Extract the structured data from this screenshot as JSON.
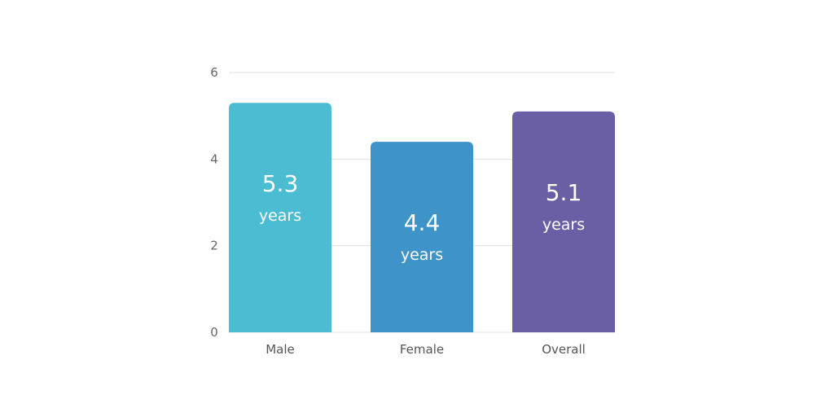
{
  "chart_data": {
    "type": "bar",
    "categories": [
      "Male",
      "Female",
      "Overall"
    ],
    "values": [
      5.3,
      4.4,
      5.1
    ],
    "value_labels": [
      "5.3",
      "4.4",
      "5.1"
    ],
    "value_unit": "years",
    "colors": [
      "#4bbcd2",
      "#3e93c9",
      "#6a5fa5"
    ],
    "ylim": [
      0,
      6
    ],
    "yticks": [
      0,
      2,
      4,
      6
    ],
    "ytick_labels": [
      "0",
      "2",
      "4",
      "6"
    ],
    "grid": true,
    "gridline_color": "#e2e2e2",
    "title": "",
    "xlabel": "",
    "ylabel": ""
  }
}
